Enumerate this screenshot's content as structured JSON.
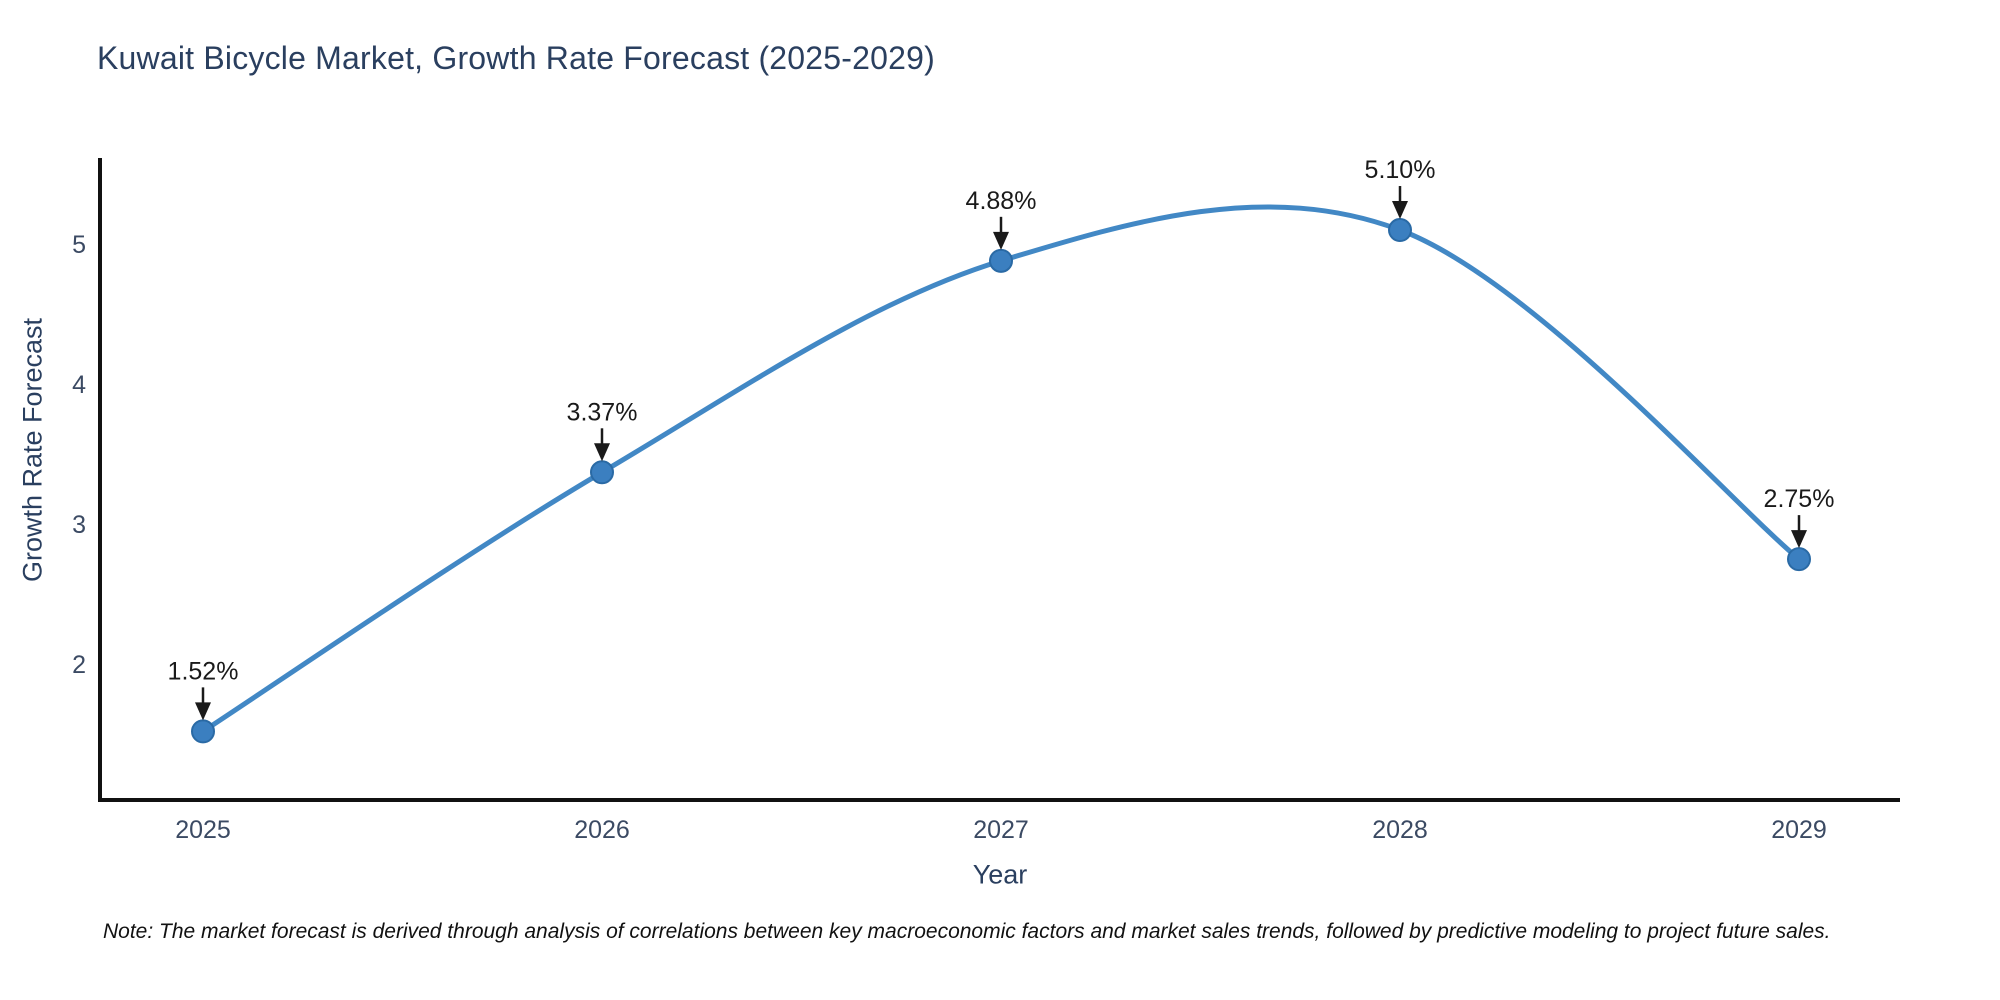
{
  "note": "Note: The market forecast is derived through analysis of correlations between key macroeconomic factors and market sales trends, followed by predictive modeling to project future sales.",
  "chart_data": {
    "type": "line",
    "title": "Kuwait Bicycle Market, Growth Rate Forecast (2025-2029)",
    "xlabel": "Year",
    "ylabel": "Growth Rate Forecast",
    "x": [
      "2025",
      "2026",
      "2027",
      "2028",
      "2029"
    ],
    "values": [
      1.52,
      3.37,
      4.88,
      5.1,
      2.75
    ],
    "point_labels": [
      "1.52%",
      "3.37%",
      "4.88%",
      "5.10%",
      "2.75%"
    ],
    "yticks": [
      2,
      3,
      4,
      5
    ],
    "ylim": [
      1.03,
      5.6
    ],
    "line_shape": "spline",
    "grid": false,
    "legend": "none",
    "annotation_style": "value label with down arrow to marker",
    "colors": {
      "line": "#4288c5",
      "marker_fill": "#3b7fc0",
      "marker_edge": "#2a6aa5",
      "axis_spine": "#111111",
      "title_text": "#2a3f5f",
      "tick_text": "#3b4a63",
      "annotation_text": "#1a1a1a",
      "background": "#ffffff"
    }
  }
}
